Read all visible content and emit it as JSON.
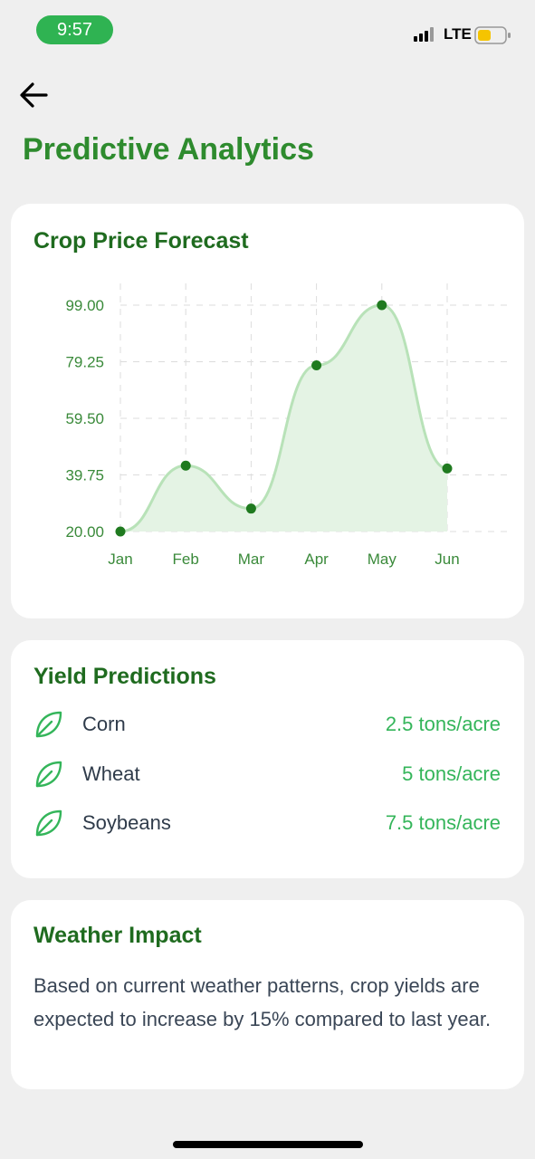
{
  "status_bar": {
    "time": "9:57",
    "network": "LTE",
    "icons": [
      "signal-icon",
      "battery-icon"
    ],
    "time_pill_color": "#2fb352"
  },
  "header": {
    "back_icon": "arrow-left-icon",
    "title": "Predictive Analytics",
    "title_color": "#2e8b2e"
  },
  "chart_card": {
    "title": "Crop Price Forecast"
  },
  "chart_data": {
    "type": "area",
    "title": "Crop Price Forecast",
    "xlabel": "",
    "ylabel": "",
    "categories": [
      "Jan",
      "Feb",
      "Mar",
      "Apr",
      "May",
      "Jun"
    ],
    "values": [
      20,
      43,
      28,
      78,
      99,
      42
    ],
    "y_ticks": [
      "99.00",
      "79.25",
      "59.50",
      "39.75",
      "20.00"
    ],
    "ylim": [
      20,
      99
    ],
    "grid": true,
    "line_color": "#b8e2b8",
    "fill_color": "#e4f3e4",
    "point_color": "#1f7a1f",
    "curve": "smooth"
  },
  "yield_card": {
    "title": "Yield Predictions",
    "icon": "leaf-icon",
    "items": [
      {
        "crop": "Corn",
        "value": "2.5 tons/acre"
      },
      {
        "crop": "Wheat",
        "value": "5 tons/acre"
      },
      {
        "crop": "Soybeans",
        "value": "7.5 tons/acre"
      }
    ],
    "value_color": "#34b55a"
  },
  "weather_card": {
    "title": "Weather Impact",
    "text": "Based on current weather patterns, crop yields are expected to increase by 15% compared to last year."
  }
}
